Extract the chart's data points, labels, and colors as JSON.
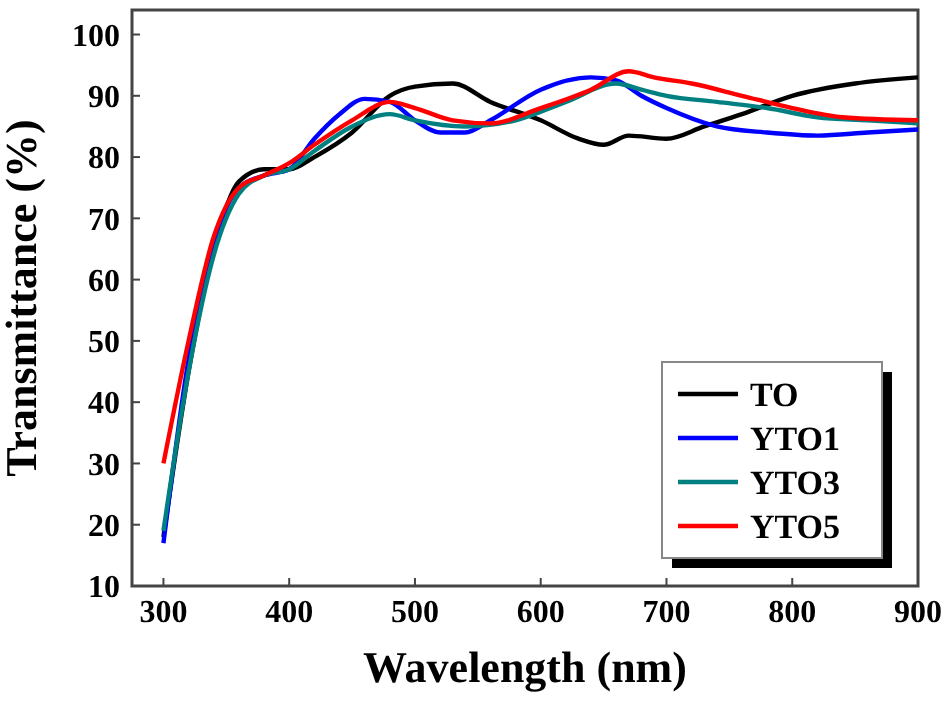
{
  "chart_data": {
    "type": "line",
    "xlabel": "Wavelength (nm)",
    "ylabel": "Transmittance (%)",
    "xlim": [
      275,
      900
    ],
    "ylim": [
      10,
      104
    ],
    "xticks": [
      300,
      400,
      500,
      600,
      700,
      800,
      900
    ],
    "yticks": [
      10,
      20,
      30,
      40,
      50,
      60,
      70,
      80,
      90,
      100
    ],
    "grid": false,
    "legend": "bottom right",
    "marker": "none",
    "line_style": "solid",
    "series": [
      {
        "name": "TO",
        "color": "#000000",
        "x": [
          300,
          320,
          340,
          360,
          380,
          400,
          420,
          450,
          480,
          500,
          530,
          560,
          600,
          630,
          650,
          670,
          700,
          730,
          760,
          800,
          850,
          900
        ],
        "values": [
          18,
          45,
          65,
          76,
          78,
          78,
          80,
          84,
          90,
          91.5,
          92,
          89,
          86,
          83,
          82,
          83.5,
          83,
          85,
          87,
          90,
          92,
          93
        ]
      },
      {
        "name": "YTO1",
        "color": "#0000ff",
        "x": [
          300,
          320,
          340,
          360,
          380,
          400,
          420,
          440,
          460,
          480,
          500,
          520,
          540,
          560,
          600,
          640,
          660,
          680,
          700,
          740,
          780,
          820,
          860,
          900
        ],
        "values": [
          17,
          47,
          66,
          75,
          77,
          78,
          83,
          87,
          89.5,
          89,
          86,
          84,
          84,
          86,
          91,
          93,
          92.5,
          90,
          88,
          85,
          84,
          83.5,
          84,
          84.5
        ]
      },
      {
        "name": "YTO3",
        "color": "#008080",
        "x": [
          300,
          320,
          340,
          360,
          380,
          400,
          420,
          450,
          480,
          500,
          540,
          580,
          620,
          660,
          680,
          700,
          740,
          780,
          820,
          860,
          900
        ],
        "values": [
          19,
          45,
          64,
          74,
          77,
          78,
          81,
          85,
          87,
          86,
          85,
          86,
          89,
          92,
          91,
          90,
          89,
          88,
          86.5,
          86,
          85.5
        ]
      },
      {
        "name": "YTO5",
        "color": "#ff0000",
        "x": [
          300,
          320,
          340,
          360,
          380,
          400,
          420,
          450,
          480,
          500,
          530,
          560,
          600,
          640,
          670,
          690,
          720,
          760,
          800,
          840,
          900
        ],
        "values": [
          30,
          50,
          67,
          75,
          77,
          79,
          82,
          86,
          89,
          88,
          86,
          85.5,
          88,
          91,
          94,
          93,
          92,
          90,
          88,
          86.5,
          86
        ]
      }
    ]
  }
}
